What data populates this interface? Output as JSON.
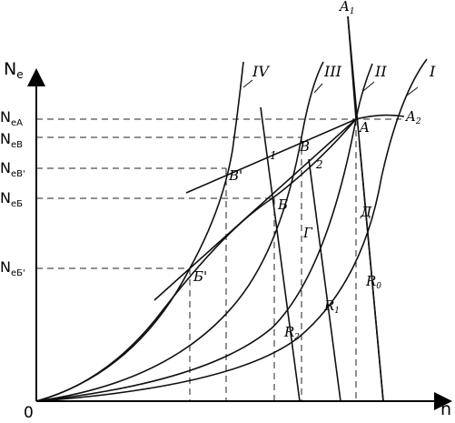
{
  "axes": {
    "y_label": "N",
    "y_label_sub": "e",
    "x_label": "n",
    "origin": "0"
  },
  "y_ticks": [
    {
      "main": "N",
      "sub": "eA"
    },
    {
      "main": "N",
      "sub": "eB"
    },
    {
      "main": "N",
      "sub": "eB'"
    },
    {
      "main": "N",
      "sub": "eБ"
    },
    {
      "main": "N",
      "sub": "eБ'"
    }
  ],
  "curve_labels": {
    "I": "I",
    "II": "II",
    "III": "III",
    "IV": "IV"
  },
  "resistance_labels": {
    "R0": {
      "main": "R",
      "sub": "0"
    },
    "R1": {
      "main": "R",
      "sub": "1"
    },
    "R2": {
      "main": "R",
      "sub": "2"
    }
  },
  "point_labels": {
    "A": "A",
    "A1": {
      "main": "A",
      "sub": "1"
    },
    "A2": {
      "main": "A",
      "sub": "2"
    },
    "B": "B",
    "B_prime": "B'",
    "Be": "Б",
    "Be_prime": "Б'",
    "G": "Г",
    "D": "Д",
    "one": "1",
    "two": "2"
  }
}
